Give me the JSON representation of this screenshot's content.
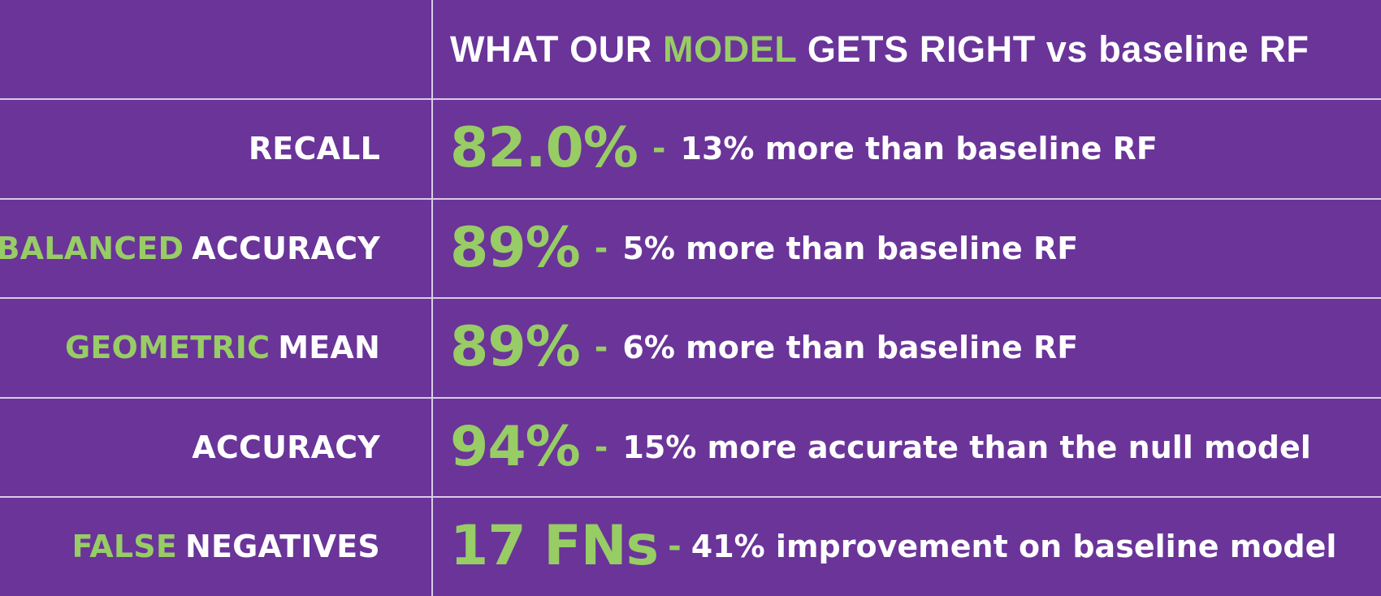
{
  "header": {
    "title_parts": [
      "WHAT OUR ",
      "MODEL",
      " GETS RIGHT vs baseline RF"
    ]
  },
  "rows": [
    {
      "label_accent": "",
      "label": "RECALL",
      "metric": "82.0%",
      "dash": "-",
      "description": "13% more than baseline RF"
    },
    {
      "label_accent": "BALANCED",
      "label": "ACCURACY",
      "metric": "89%",
      "dash": "-",
      "description": "5% more than baseline RF"
    },
    {
      "label_accent": "GEOMETRIC",
      "label": "MEAN",
      "metric": "89%",
      "dash": "-",
      "description": "6% more than baseline RF"
    },
    {
      "label_accent": "",
      "label": "ACCURACY",
      "metric": "94%",
      "dash": "-",
      "description": "15% more accurate than the null model"
    },
    {
      "label_accent": "FALSE",
      "label": "NEGATIVES",
      "metric": "17 FNs",
      "dash": "-",
      "description": "41% improvement on baseline model"
    }
  ],
  "colors": {
    "background": "#6a3499",
    "accent_green": "#98cc65",
    "text_white": "#ffffff",
    "grid_lines": "#d9cce6"
  }
}
